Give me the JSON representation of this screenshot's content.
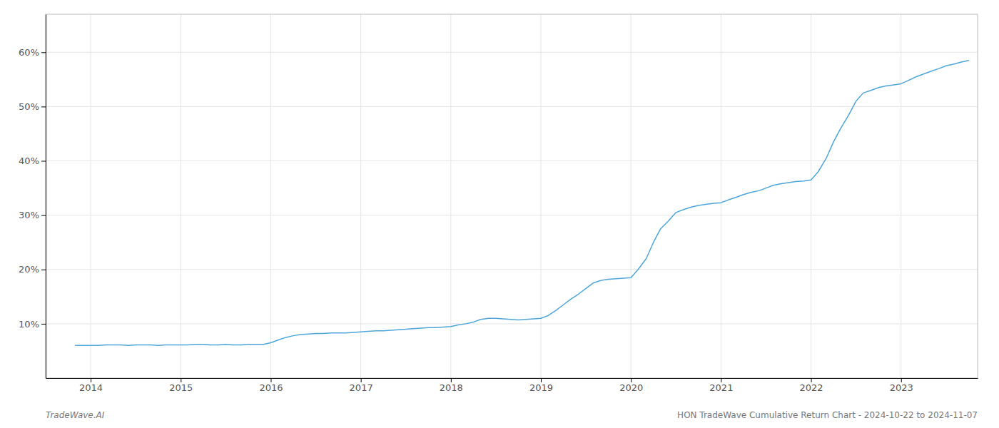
{
  "chart_data": {
    "type": "line",
    "color": "#4da6d9",
    "x": [
      2013.83,
      2014.0,
      2014.08,
      2014.17,
      2014.25,
      2014.33,
      2014.42,
      2014.5,
      2014.58,
      2014.67,
      2014.75,
      2014.83,
      2014.92,
      2015.0,
      2015.08,
      2015.17,
      2015.25,
      2015.33,
      2015.42,
      2015.5,
      2015.58,
      2015.67,
      2015.75,
      2015.83,
      2015.92,
      2016.0,
      2016.08,
      2016.17,
      2016.25,
      2016.33,
      2016.42,
      2016.5,
      2016.58,
      2016.67,
      2016.75,
      2016.83,
      2016.92,
      2017.0,
      2017.08,
      2017.17,
      2017.25,
      2017.33,
      2017.42,
      2017.5,
      2017.58,
      2017.67,
      2017.75,
      2017.83,
      2017.92,
      2018.0,
      2018.08,
      2018.17,
      2018.25,
      2018.33,
      2018.42,
      2018.5,
      2018.58,
      2018.67,
      2018.75,
      2018.83,
      2018.92,
      2019.0,
      2019.08,
      2019.17,
      2019.25,
      2019.33,
      2019.42,
      2019.5,
      2019.58,
      2019.67,
      2019.75,
      2019.83,
      2019.92,
      2020.0,
      2020.08,
      2020.17,
      2020.25,
      2020.33,
      2020.42,
      2020.5,
      2020.58,
      2020.67,
      2020.75,
      2020.83,
      2020.92,
      2021.0,
      2021.08,
      2021.17,
      2021.25,
      2021.33,
      2021.42,
      2021.5,
      2021.58,
      2021.67,
      2021.75,
      2021.83,
      2021.92,
      2022.0,
      2022.08,
      2022.17,
      2022.25,
      2022.33,
      2022.42,
      2022.5,
      2022.58,
      2022.67,
      2022.75,
      2022.83,
      2022.92,
      2023.0,
      2023.08,
      2023.17,
      2023.25,
      2023.33,
      2023.42,
      2023.5,
      2023.58,
      2023.67,
      2023.75
    ],
    "values": [
      6.0,
      6.0,
      6.0,
      6.1,
      6.1,
      6.1,
      6.0,
      6.1,
      6.1,
      6.1,
      6.0,
      6.1,
      6.1,
      6.1,
      6.1,
      6.2,
      6.2,
      6.1,
      6.1,
      6.2,
      6.1,
      6.1,
      6.2,
      6.2,
      6.2,
      6.5,
      7.0,
      7.5,
      7.8,
      8.0,
      8.1,
      8.2,
      8.2,
      8.3,
      8.3,
      8.3,
      8.4,
      8.5,
      8.6,
      8.7,
      8.7,
      8.8,
      8.9,
      9.0,
      9.1,
      9.2,
      9.3,
      9.3,
      9.4,
      9.5,
      9.8,
      10.0,
      10.3,
      10.8,
      11.0,
      11.0,
      10.9,
      10.8,
      10.7,
      10.8,
      10.9,
      11.0,
      11.5,
      12.5,
      13.5,
      14.5,
      15.5,
      16.5,
      17.5,
      18.0,
      18.2,
      18.3,
      18.4,
      18.5,
      20.0,
      22.0,
      25.0,
      27.5,
      29.0,
      30.5,
      31.0,
      31.5,
      31.8,
      32.0,
      32.2,
      32.3,
      32.8,
      33.3,
      33.8,
      34.2,
      34.5,
      35.0,
      35.5,
      35.8,
      36.0,
      36.2,
      36.3,
      36.5,
      38.0,
      40.5,
      43.5,
      46.0,
      48.5,
      51.0,
      52.5,
      53.0,
      53.5,
      53.8,
      54.0,
      54.2,
      54.8,
      55.5,
      56.0,
      56.5,
      57.0,
      57.5,
      57.8,
      58.2,
      58.5
    ],
    "xlim": [
      2013.5,
      2023.85
    ],
    "ylim": [
      0,
      67
    ],
    "xticks": [
      2014,
      2015,
      2016,
      2017,
      2018,
      2019,
      2020,
      2021,
      2022,
      2023
    ],
    "yticks": [
      {
        "value": 10,
        "label": "10%"
      },
      {
        "value": 20,
        "label": "20%"
      },
      {
        "value": 30,
        "label": "30%"
      },
      {
        "value": 40,
        "label": "40%"
      },
      {
        "value": 50,
        "label": "50%"
      },
      {
        "value": 60,
        "label": "60%"
      }
    ],
    "grid": true,
    "annotations": [
      "TradeWave.AI",
      "HON TradeWave Cumulative Return Chart - 2024-10-22 to 2024-11-07"
    ]
  }
}
